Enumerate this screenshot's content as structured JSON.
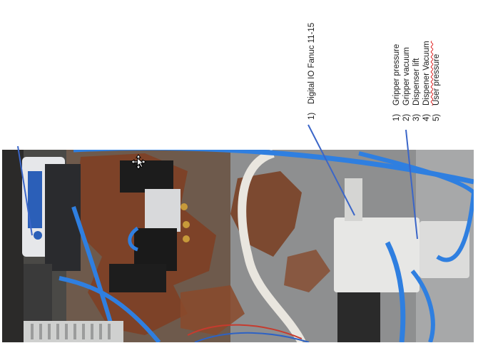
{
  "annotation_single": {
    "number": "1)",
    "label": "Digital IO Fanuc 11-15"
  },
  "annotation_list": [
    {
      "number": "1)",
      "label": "Gripper pressure"
    },
    {
      "number": "2)",
      "label": "Gripper vacuum"
    },
    {
      "number": "3)",
      "label": "Dispenser lift"
    },
    {
      "number": "4)",
      "label": "Dispener Vacuum"
    },
    {
      "number": "5)",
      "label": "User pressure"
    }
  ],
  "colors": {
    "callout_line": "#3b66c8",
    "tube_blue": "#2f7fe0",
    "rust": "#8a4a2c",
    "panel_grey": "#8f9091"
  },
  "icons": [
    "move-cursor-icon"
  ]
}
